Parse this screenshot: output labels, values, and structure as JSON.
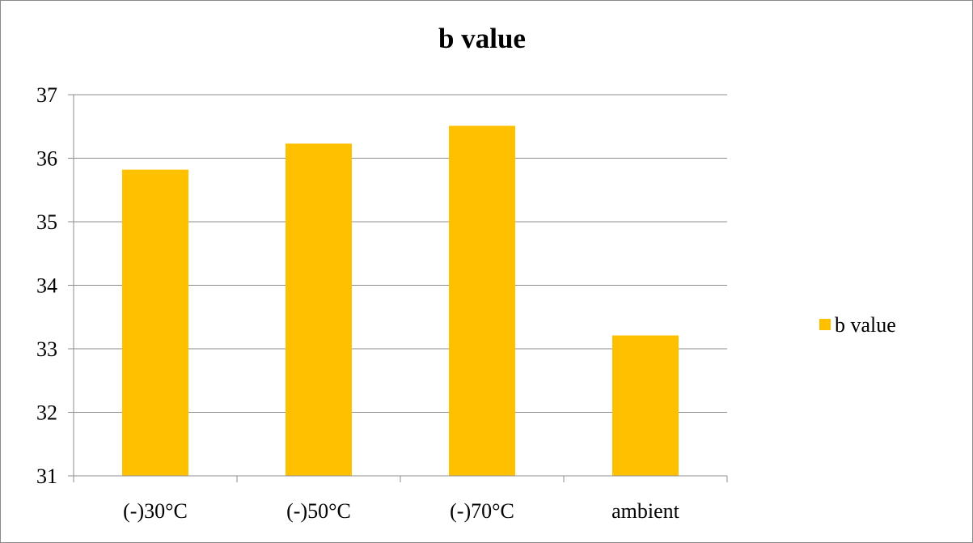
{
  "chart_data": {
    "type": "bar",
    "title": "b value",
    "categories": [
      "(-)30°C",
      "(-)50°C",
      "(-)70°C",
      "ambient"
    ],
    "series": [
      {
        "name": "b value",
        "values": [
          35.82,
          36.23,
          36.51,
          33.21
        ],
        "color": "#FFC000"
      }
    ],
    "y_ticks": [
      "31",
      "32",
      "33",
      "34",
      "35",
      "36",
      "37"
    ],
    "ylim": [
      31,
      37
    ],
    "grid": true,
    "legend_position": "right"
  }
}
